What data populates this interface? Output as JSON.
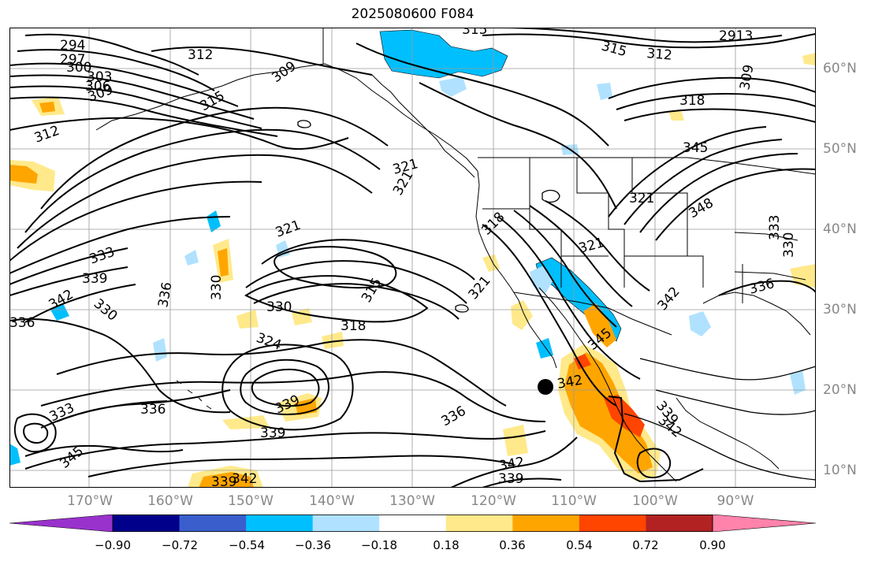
{
  "title": "2025080600 F084",
  "lat_labels": [
    "60°N",
    "50°N",
    "40°N",
    "30°N",
    "20°N",
    "10°N"
  ],
  "lon_labels": [
    "170°W",
    "160°W",
    "150°W",
    "140°W",
    "130°W",
    "120°W",
    "110°W",
    "100°W",
    "90°W"
  ],
  "contour_labels": {
    "l294": "294",
    "l297": "297",
    "l300": "300",
    "l303": "303",
    "l306": "306",
    "l309": "309",
    "l312a": "312",
    "l312b": "312",
    "l315a": "315",
    "l315b": "315",
    "l315c": "315",
    "l318a": "318",
    "l318b": "318",
    "l318c": "318",
    "l321a": "321",
    "l321b": "321",
    "l321c": "321",
    "l321d": "321",
    "l321e": "321",
    "l324": "324",
    "l330a": "330",
    "l330b": "330",
    "l330c": "330",
    "l333a": "333",
    "l333b": "333",
    "l333c": "333",
    "l336a": "336",
    "l336b": "336",
    "l336c": "336",
    "l336d": "336",
    "l339a": "339",
    "l339b": "339",
    "l339c": "339",
    "l339d": "339",
    "l339e": "339",
    "l342a": "342",
    "l342b": "342",
    "l342c": "342",
    "l342d": "342",
    "l345a": "345",
    "l345b": "345",
    "l348": "348",
    "l2913": "2913"
  },
  "colorbar": {
    "ticks": [
      "−0.90",
      "−0.72",
      "−0.54",
      "−0.36",
      "−0.18",
      "0.18",
      "0.36",
      "0.54",
      "0.72",
      "0.90"
    ],
    "colors": [
      "#9932cc",
      "#00008b",
      "#3a5fcd",
      "#00bfff",
      "#b0e2ff",
      "#ffffff",
      "#ffe98a",
      "#ffa500",
      "#ff4500",
      "#b22222",
      "#ff83ab"
    ]
  },
  "storm_marker": "storm-center-dot",
  "colors": {
    "pos_light": "#ffe98a",
    "pos_mid": "#ffa500",
    "pos_strong": "#ff4500",
    "neg_light": "#b0e2ff",
    "neg_mid": "#00bfff",
    "grid": "#9a9a9a",
    "axis_label": "#888888"
  }
}
